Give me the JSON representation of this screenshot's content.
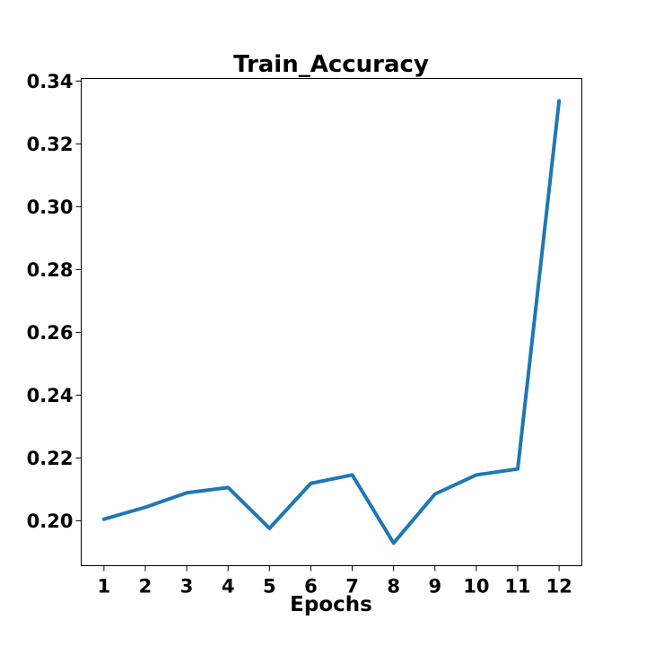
{
  "chart_data": {
    "type": "line",
    "title": "Train_Accuracy",
    "xlabel": "Epochs",
    "ylabel": "",
    "x": [
      1,
      2,
      3,
      4,
      5,
      6,
      7,
      8,
      9,
      10,
      11,
      12
    ],
    "series": [
      {
        "values": [
          0.2005,
          0.2043,
          0.2089,
          0.2106,
          0.1976,
          0.2119,
          0.2146,
          0.1929,
          0.2085,
          0.2146,
          0.2165,
          0.3337
        ],
        "color": "#1f77b4"
      }
    ],
    "xticks": [
      "1",
      "2",
      "3",
      "4",
      "5",
      "6",
      "7",
      "8",
      "9",
      "10",
      "11",
      "12"
    ],
    "yticks": [
      0.2,
      0.22,
      0.24,
      0.26,
      0.28,
      0.3,
      0.32,
      0.34
    ],
    "ytick_labels": [
      "0.20",
      "0.22",
      "0.24",
      "0.26",
      "0.28",
      "0.30",
      "0.32",
      "0.34"
    ],
    "xlim": [
      0.45,
      12.55
    ],
    "ylim": [
      0.1857,
      0.3408
    ],
    "grid": false,
    "legend": "none"
  }
}
